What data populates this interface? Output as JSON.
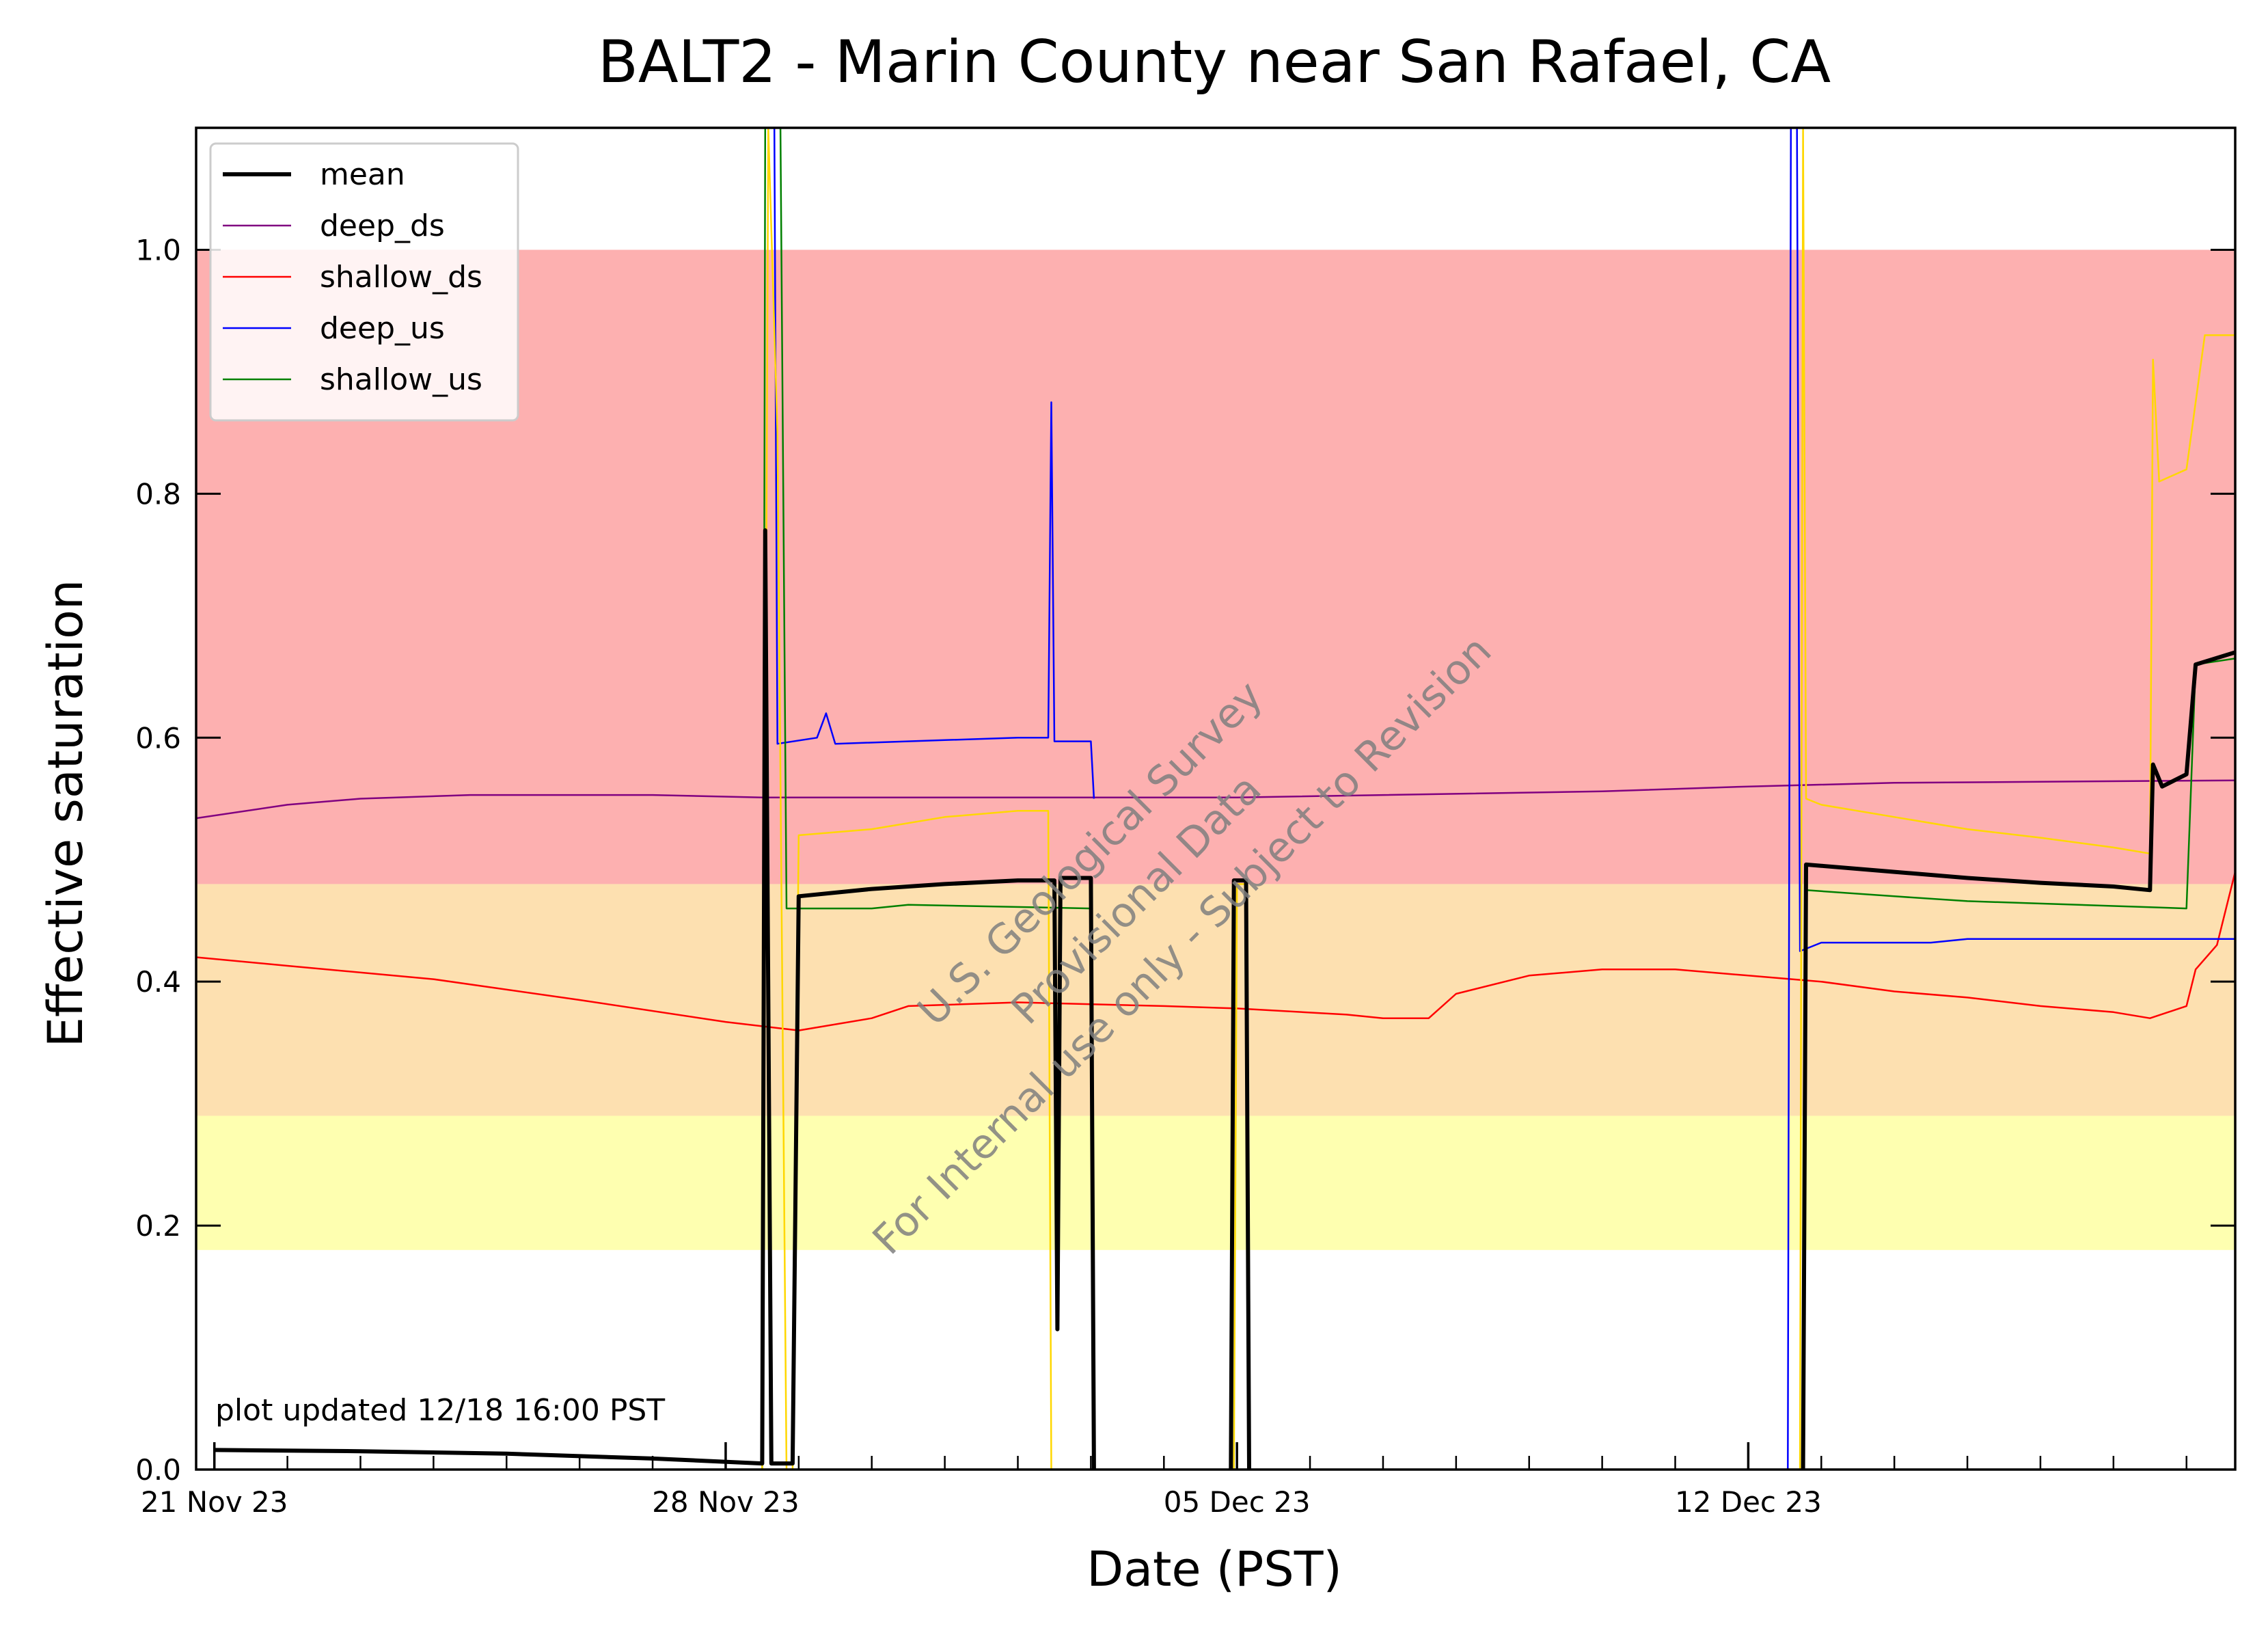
{
  "chart_data": {
    "type": "line",
    "title": "BALT2 - Marin County near San Rafael, CA",
    "xlabel": "Date (PST)",
    "ylabel": "Effective saturation",
    "xlim": [
      "2023-11-20T18:00",
      "2023-12-18T16:00"
    ],
    "ylim": [
      0,
      1.1
    ],
    "yticks": [
      0.0,
      0.2,
      0.4,
      0.6,
      0.8,
      1.0
    ],
    "ytick_labels": [
      "0.0",
      "0.2",
      "0.4",
      "0.6",
      "0.8",
      "1.0"
    ],
    "xticks": [
      "2023-11-21T00:00",
      "2023-11-28T00:00",
      "2023-12-05T00:00",
      "2023-12-12T00:00"
    ],
    "xtick_labels": [
      "21 Nov 23",
      "28 Nov 23",
      "05 Dec 23",
      "12 Dec 23"
    ],
    "grid": false,
    "legend_position": "top-left",
    "bands": [
      {
        "y0": 0.18,
        "y1": 0.29,
        "color": "#feffb0"
      },
      {
        "y0": 0.29,
        "y1": 0.48,
        "color": "#fde0b0"
      },
      {
        "y0": 0.48,
        "y1": 1.0,
        "color": "#fdb0b0"
      }
    ],
    "annotation": "plot updated 12/18 16:00  PST",
    "watermark": [
      "U.S. Geological Survey",
      "Provisional Data",
      "For Internal use only - Subject to Revision"
    ],
    "series": [
      {
        "name": "mean",
        "color": "#000000",
        "width": 6,
        "points": [
          [
            "2023-11-21T00:00",
            0.016
          ],
          [
            "2023-11-23T00:00",
            0.015
          ],
          [
            "2023-11-25T00:00",
            0.013
          ],
          [
            "2023-11-27T00:00",
            0.009
          ],
          [
            "2023-11-28T12:00",
            0.005
          ],
          [
            "2023-11-28T13:00",
            0.77
          ],
          [
            "2023-11-28T15:00",
            0.005
          ],
          [
            "2023-11-28T22:00",
            0.005
          ],
          [
            "2023-11-29T00:00",
            0.47
          ],
          [
            "2023-11-30T00:00",
            0.476
          ],
          [
            "2023-12-01T00:00",
            0.48
          ],
          [
            "2023-12-02T00:00",
            0.483
          ],
          [
            "2023-12-02T12:00",
            0.483
          ],
          [
            "2023-12-02T13:00",
            0.115
          ],
          [
            "2023-12-02T14:00",
            0.485
          ],
          [
            "2023-12-03T00:00",
            0.485
          ],
          [
            "2023-12-03T01:00",
            0.0
          ],
          null,
          [
            "2023-12-04T22:00",
            0.0
          ],
          [
            "2023-12-04T23:00",
            0.483
          ],
          [
            "2023-12-05T03:00",
            0.483
          ],
          [
            "2023-12-05T04:00",
            0.0
          ],
          null,
          [
            "2023-12-12T18:00",
            0.0
          ],
          [
            "2023-12-12T19:00",
            0.496
          ],
          [
            "2023-12-13T00:00",
            0.495
          ],
          [
            "2023-12-14T00:00",
            0.49
          ],
          [
            "2023-12-15T00:00",
            0.485
          ],
          [
            "2023-12-16T00:00",
            0.481
          ],
          [
            "2023-12-17T00:00",
            0.478
          ],
          [
            "2023-12-17T12:00",
            0.475
          ],
          [
            "2023-12-17T13:00",
            0.578
          ],
          [
            "2023-12-17T16:00",
            0.56
          ],
          [
            "2023-12-18T00:00",
            0.57
          ],
          [
            "2023-12-18T03:00",
            0.66
          ],
          [
            "2023-12-18T16:00",
            0.67
          ]
        ]
      },
      {
        "name": "deep_ds",
        "color": "#800080",
        "width": 2.5,
        "points": [
          [
            "2023-11-20T18:00",
            0.534
          ],
          [
            "2023-11-22T00:00",
            0.545
          ],
          [
            "2023-11-23T00:00",
            0.55
          ],
          [
            "2023-11-24T12:00",
            0.553
          ],
          [
            "2023-11-27T00:00",
            0.553
          ],
          [
            "2023-11-28T12:00",
            0.551
          ],
          [
            "2023-12-05T00:00",
            0.551
          ],
          [
            "2023-12-10T00:00",
            0.556
          ],
          [
            "2023-12-12T00:00",
            0.56
          ],
          [
            "2023-12-14T00:00",
            0.563
          ],
          [
            "2023-12-18T16:00",
            0.565
          ]
        ]
      },
      {
        "name": "shallow_ds",
        "color": "#ff0000",
        "width": 2.5,
        "points": [
          [
            "2023-11-20T18:00",
            0.42
          ],
          [
            "2023-11-22T00:00",
            0.413
          ],
          [
            "2023-11-24T00:00",
            0.402
          ],
          [
            "2023-11-26T00:00",
            0.385
          ],
          [
            "2023-11-28T00:00",
            0.367
          ],
          [
            "2023-11-29T00:00",
            0.36
          ],
          [
            "2023-11-30T00:00",
            0.37
          ],
          [
            "2023-11-30T12:00",
            0.38
          ],
          [
            "2023-12-02T00:00",
            0.383
          ],
          [
            "2023-12-04T00:00",
            0.38
          ],
          [
            "2023-12-05T00:00",
            0.378
          ],
          [
            "2023-12-06T12:00",
            0.373
          ],
          [
            "2023-12-07T00:00",
            0.37
          ],
          [
            "2023-12-07T15:00",
            0.37
          ],
          [
            "2023-12-08T00:00",
            0.39
          ],
          [
            "2023-12-09T00:00",
            0.405
          ],
          [
            "2023-12-10T00:00",
            0.41
          ],
          [
            "2023-12-11T00:00",
            0.41
          ],
          [
            "2023-12-12T00:00",
            0.405
          ],
          [
            "2023-12-13T00:00",
            0.4
          ],
          [
            "2023-12-14T00:00",
            0.392
          ],
          [
            "2023-12-15T00:00",
            0.387
          ],
          [
            "2023-12-16T00:00",
            0.38
          ],
          [
            "2023-12-17T00:00",
            0.375
          ],
          [
            "2023-12-17T12:00",
            0.37
          ],
          [
            "2023-12-18T00:00",
            0.38
          ],
          [
            "2023-12-18T03:00",
            0.41
          ],
          [
            "2023-12-18T10:00",
            0.43
          ],
          [
            "2023-12-18T16:00",
            0.49
          ]
        ]
      },
      {
        "name": "deep_us",
        "color": "#0000ff",
        "width": 2.5,
        "points": [
          [
            "2023-11-28T16:00",
            1.1
          ],
          [
            "2023-11-28T17:00",
            0.595
          ],
          [
            "2023-11-29T06:00",
            0.6
          ],
          [
            "2023-11-29T09:00",
            0.62
          ],
          [
            "2023-11-29T12:00",
            0.595
          ],
          [
            "2023-12-01T00:00",
            0.598
          ],
          [
            "2023-12-02T00:00",
            0.6
          ],
          [
            "2023-12-02T10:00",
            0.6
          ],
          [
            "2023-12-02T11:00",
            0.875
          ],
          [
            "2023-12-02T12:00",
            0.597
          ],
          [
            "2023-12-03T00:00",
            0.597
          ],
          [
            "2023-12-03T01:00",
            0.55
          ],
          null,
          [
            "2023-12-12T13:00",
            0.0
          ],
          [
            "2023-12-12T14:00",
            1.1
          ],
          [
            "2023-12-12T16:00",
            1.1
          ],
          [
            "2023-12-12T17:00",
            0.425
          ],
          [
            "2023-12-13T00:00",
            0.432
          ],
          [
            "2023-12-14T12:00",
            0.432
          ],
          [
            "2023-12-15T00:00",
            0.435
          ],
          [
            "2023-12-18T16:00",
            0.435
          ]
        ]
      },
      {
        "name": "shallow_us",
        "color": "#008000",
        "width": 2.5,
        "points": [
          [
            "2023-11-28T12:00",
            0.0
          ],
          [
            "2023-11-28T13:00",
            1.1
          ],
          [
            "2023-11-28T18:00",
            1.1
          ],
          [
            "2023-11-28T20:00",
            0.46
          ],
          [
            "2023-11-30T00:00",
            0.46
          ],
          [
            "2023-11-30T12:00",
            0.463
          ],
          [
            "2023-12-03T00:00",
            0.46
          ],
          null,
          [
            "2023-12-12T18:00",
            0.0
          ],
          [
            "2023-12-12T19:00",
            0.475
          ],
          [
            "2023-12-14T00:00",
            0.47
          ],
          [
            "2023-12-15T00:00",
            0.466
          ],
          [
            "2023-12-17T00:00",
            0.462
          ],
          [
            "2023-12-18T00:00",
            0.46
          ],
          [
            "2023-12-18T03:00",
            0.66
          ],
          [
            "2023-12-18T16:00",
            0.665
          ]
        ]
      },
      {
        "name": "",
        "color": "#ffd700",
        "width": 2.5,
        "points": [
          [
            "2023-11-28T12:00",
            0.0
          ],
          [
            "2023-11-28T14:00",
            1.1
          ],
          [
            "2023-11-28T17:00",
            0.85
          ],
          [
            "2023-11-28T20:00",
            0.0
          ],
          [
            "2023-11-28T22:00",
            0.0
          ],
          [
            "2023-11-29T00:00",
            0.52
          ],
          [
            "2023-11-30T00:00",
            0.525
          ],
          [
            "2023-12-01T00:00",
            0.535
          ],
          [
            "2023-12-02T00:00",
            0.54
          ],
          [
            "2023-12-02T10:00",
            0.54
          ],
          [
            "2023-12-02T11:00",
            0.0
          ],
          null,
          [
            "2023-12-04T23:00",
            0.0
          ],
          [
            "2023-12-05T00:00",
            0.48
          ],
          [
            "2023-12-05T03:00",
            0.48
          ],
          [
            "2023-12-05T04:00",
            0.0
          ],
          null,
          [
            "2023-12-12T17:00",
            0.0
          ],
          [
            "2023-12-12T18:00",
            1.1
          ],
          [
            "2023-12-12T19:00",
            0.55
          ],
          [
            "2023-12-13T00:00",
            0.545
          ],
          [
            "2023-12-14T00:00",
            0.535
          ],
          [
            "2023-12-15T00:00",
            0.525
          ],
          [
            "2023-12-16T00:00",
            0.518
          ],
          [
            "2023-12-17T00:00",
            0.51
          ],
          [
            "2023-12-17T12:00",
            0.505
          ],
          [
            "2023-12-17T13:00",
            0.91
          ],
          [
            "2023-12-17T15:00",
            0.81
          ],
          [
            "2023-12-18T00:00",
            0.82
          ],
          [
            "2023-12-18T06:00",
            0.93
          ],
          [
            "2023-12-18T16:00",
            0.93
          ]
        ]
      }
    ]
  }
}
